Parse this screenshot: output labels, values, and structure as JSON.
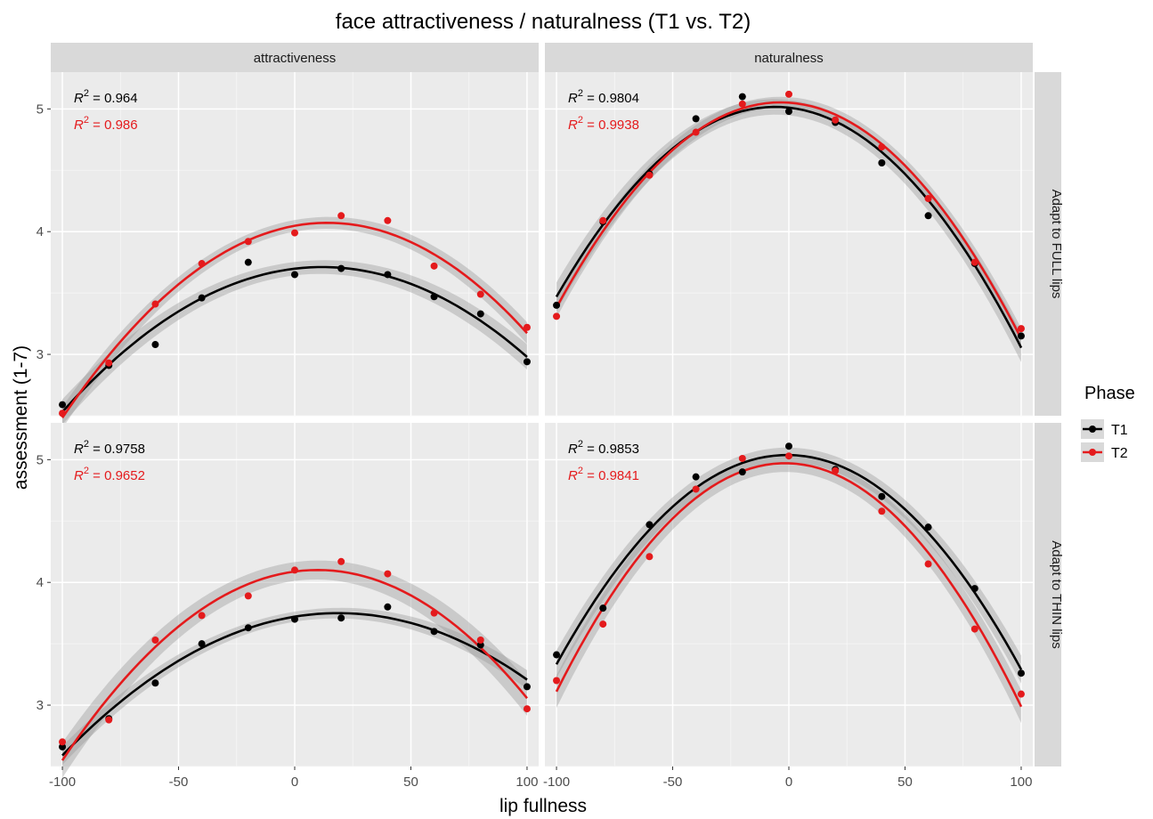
{
  "chart_data": {
    "type": "scatter",
    "title": "face attractiveness / naturalness (T1 vs. T2)",
    "xlabel": "lip fullness",
    "ylabel": "assessment (1-7)",
    "xlim": [
      -105,
      105
    ],
    "ylim": [
      2.5,
      5.3
    ],
    "xticks": [
      -100,
      -50,
      0,
      50,
      100
    ],
    "xtick_labels": [
      "-100",
      "-50",
      "0",
      "50",
      "100"
    ],
    "yticks": [
      3,
      4,
      5
    ],
    "ytick_labels": [
      "3",
      "4",
      "5"
    ],
    "columns": [
      "attractiveness",
      "naturalness"
    ],
    "rows": [
      "Adapt to FULL lips",
      "Adapt to THIN lips"
    ],
    "grid": true,
    "legend": {
      "title": "Phase",
      "position": "right",
      "entries": [
        {
          "name": "T1",
          "color": "#000000"
        },
        {
          "name": "T2",
          "color": "#e41a1c"
        }
      ]
    },
    "r2_label_prefix": "R",
    "r2_label_exponent": "2",
    "r2_label_operator": " = ",
    "panels": [
      {
        "row": "Adapt to FULL lips",
        "column": "attractiveness",
        "series": [
          {
            "name": "T1",
            "r2": "0.964",
            "x": [
              -100,
              -80,
              -60,
              -40,
              -20,
              0,
              20,
              40,
              60,
              80,
              100
            ],
            "y": [
              2.59,
              2.91,
              3.08,
              3.46,
              3.75,
              3.65,
              3.7,
              3.65,
              3.47,
              3.33,
              2.94
            ]
          },
          {
            "name": "T2",
            "r2": "0.986",
            "x": [
              -100,
              -80,
              -60,
              -40,
              -20,
              0,
              20,
              40,
              60,
              80,
              100
            ],
            "y": [
              2.52,
              2.93,
              3.41,
              3.74,
              3.92,
              3.99,
              4.13,
              4.09,
              3.72,
              3.49,
              3.22
            ]
          }
        ]
      },
      {
        "row": "Adapt to FULL lips",
        "column": "naturalness",
        "series": [
          {
            "name": "T1",
            "r2": "0.9804",
            "x": [
              -100,
              -80,
              -60,
              -40,
              -20,
              0,
              20,
              40,
              60,
              80,
              100
            ],
            "y": [
              3.4,
              4.08,
              4.47,
              4.92,
              5.1,
              4.98,
              4.89,
              4.56,
              4.13,
              3.74,
              3.15
            ]
          },
          {
            "name": "T2",
            "r2": "0.9938",
            "x": [
              -100,
              -80,
              -60,
              -40,
              -20,
              0,
              20,
              40,
              60,
              80,
              100
            ],
            "y": [
              3.31,
              4.09,
              4.46,
              4.81,
              5.04,
              5.12,
              4.91,
              4.69,
              4.27,
              3.75,
              3.21
            ]
          }
        ]
      },
      {
        "row": "Adapt to THIN lips",
        "column": "attractiveness",
        "series": [
          {
            "name": "T1",
            "r2": "0.9758",
            "x": [
              -100,
              -80,
              -60,
              -40,
              -20,
              0,
              20,
              40,
              60,
              80,
              100
            ],
            "y": [
              2.66,
              2.89,
              3.18,
              3.5,
              3.63,
              3.7,
              3.71,
              3.8,
              3.6,
              3.49,
              3.15
            ]
          },
          {
            "name": "T2",
            "r2": "0.9652",
            "x": [
              -100,
              -80,
              -60,
              -40,
              -20,
              0,
              20,
              40,
              60,
              80,
              100
            ],
            "y": [
              2.7,
              2.88,
              3.53,
              3.73,
              3.89,
              4.1,
              4.17,
              4.07,
              3.75,
              3.53,
              2.97
            ]
          }
        ]
      },
      {
        "row": "Adapt to THIN lips",
        "column": "naturalness",
        "series": [
          {
            "name": "T1",
            "r2": "0.9853",
            "x": [
              -100,
              -80,
              -60,
              -40,
              -20,
              0,
              20,
              40,
              60,
              80,
              100
            ],
            "y": [
              3.41,
              3.79,
              4.47,
              4.86,
              4.9,
              5.11,
              4.92,
              4.7,
              4.45,
              3.95,
              3.26
            ]
          },
          {
            "name": "T2",
            "r2": "0.9841",
            "x": [
              -100,
              -80,
              -60,
              -40,
              -20,
              0,
              20,
              40,
              60,
              80,
              100
            ],
            "y": [
              3.2,
              3.66,
              4.21,
              4.76,
              5.01,
              5.03,
              4.91,
              4.58,
              4.15,
              3.62,
              3.09
            ]
          }
        ]
      }
    ]
  }
}
